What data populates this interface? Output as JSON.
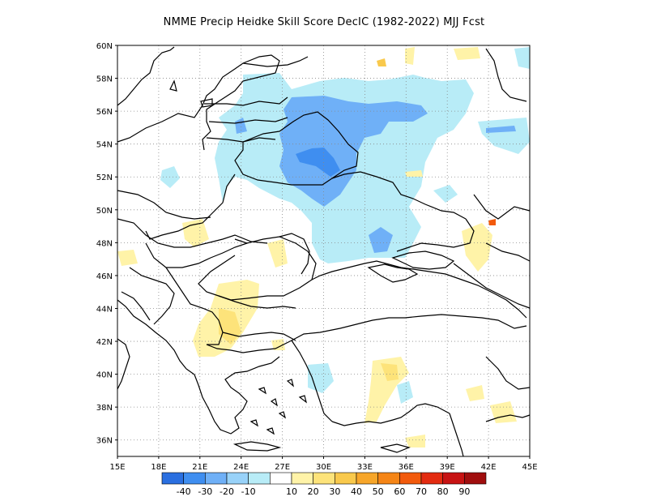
{
  "title": "NMME Precip Heidke Skill Score DecIC (1982-2022) MJJ Fcst",
  "map": {
    "lon_range": [
      15,
      45
    ],
    "lat_range": [
      35,
      60
    ],
    "lon_ticks": [
      "15E",
      "18E",
      "21E",
      "24E",
      "27E",
      "30E",
      "33E",
      "36E",
      "39E",
      "42E",
      "45E"
    ],
    "lat_ticks": [
      "60N",
      "58N",
      "56N",
      "54N",
      "52N",
      "50N",
      "48N",
      "46N",
      "44N",
      "42N",
      "40N",
      "38N",
      "36N"
    ],
    "grid": "dotted"
  },
  "colorbar": {
    "colors": [
      "#2a6fe0",
      "#3f8ef0",
      "#6fb0f7",
      "#98d2f9",
      "#b8ecf7",
      "#ffffff",
      "#fff3a8",
      "#fde37a",
      "#f9c94c",
      "#f7a62a",
      "#f58516",
      "#f25a0c",
      "#e32b10",
      "#c71313",
      "#a00e0e"
    ],
    "labels": [
      "-40",
      "-30",
      "-20",
      "-10",
      "10",
      "20",
      "30",
      "40",
      "50",
      "60",
      "70",
      "80",
      "90"
    ]
  }
}
